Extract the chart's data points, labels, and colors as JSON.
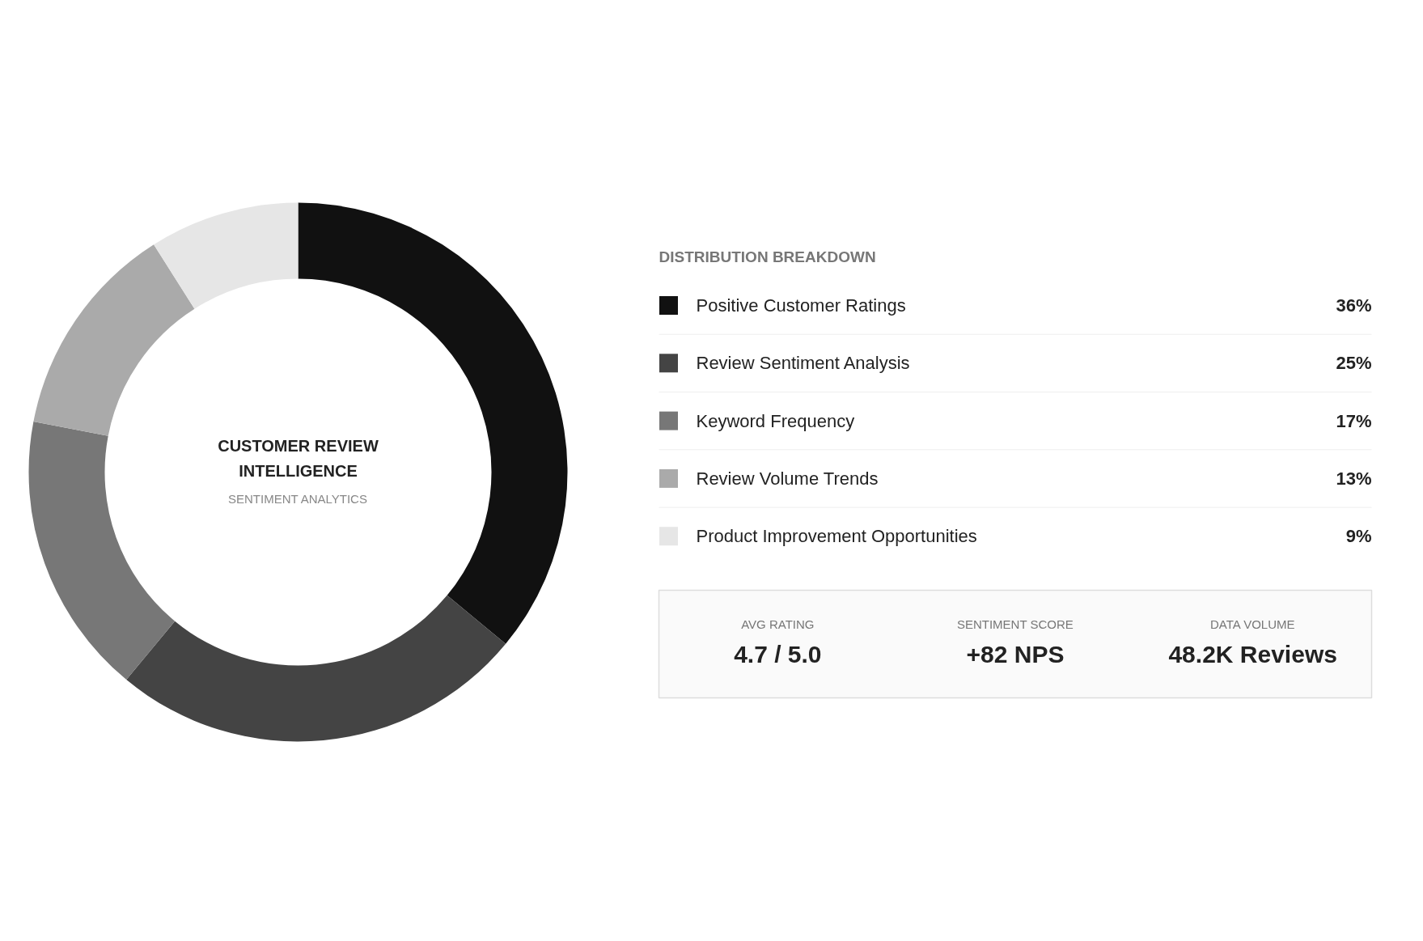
{
  "chart_data": {
    "type": "donut",
    "title": "CUSTOMER REVIEW INTELLIGENCE",
    "subtitle": "SENTIMENT ANALYTICS",
    "legend_title": "DISTRIBUTION BREAKDOWN",
    "legend": "right",
    "categories": [
      "Positive Customer Ratings",
      "Review Sentiment Analysis",
      "Keyword Frequency",
      "Review Volume Trends",
      "Product Improvement Opportunities"
    ],
    "values": [
      36,
      25,
      17,
      13,
      9
    ],
    "value_labels": [
      "36%",
      "25%",
      "17%",
      "13%",
      "9%"
    ],
    "colors": [
      "#111111",
      "#444444",
      "#777777",
      "#aaaaaa",
      "#e6e6e6"
    ],
    "annotations": [
      "AVG RATING",
      "4.7 / 5.0",
      "SENTIMENT SCORE",
      "+82 NPS",
      "DATA VOLUME",
      "48.2K Reviews"
    ]
  }
}
